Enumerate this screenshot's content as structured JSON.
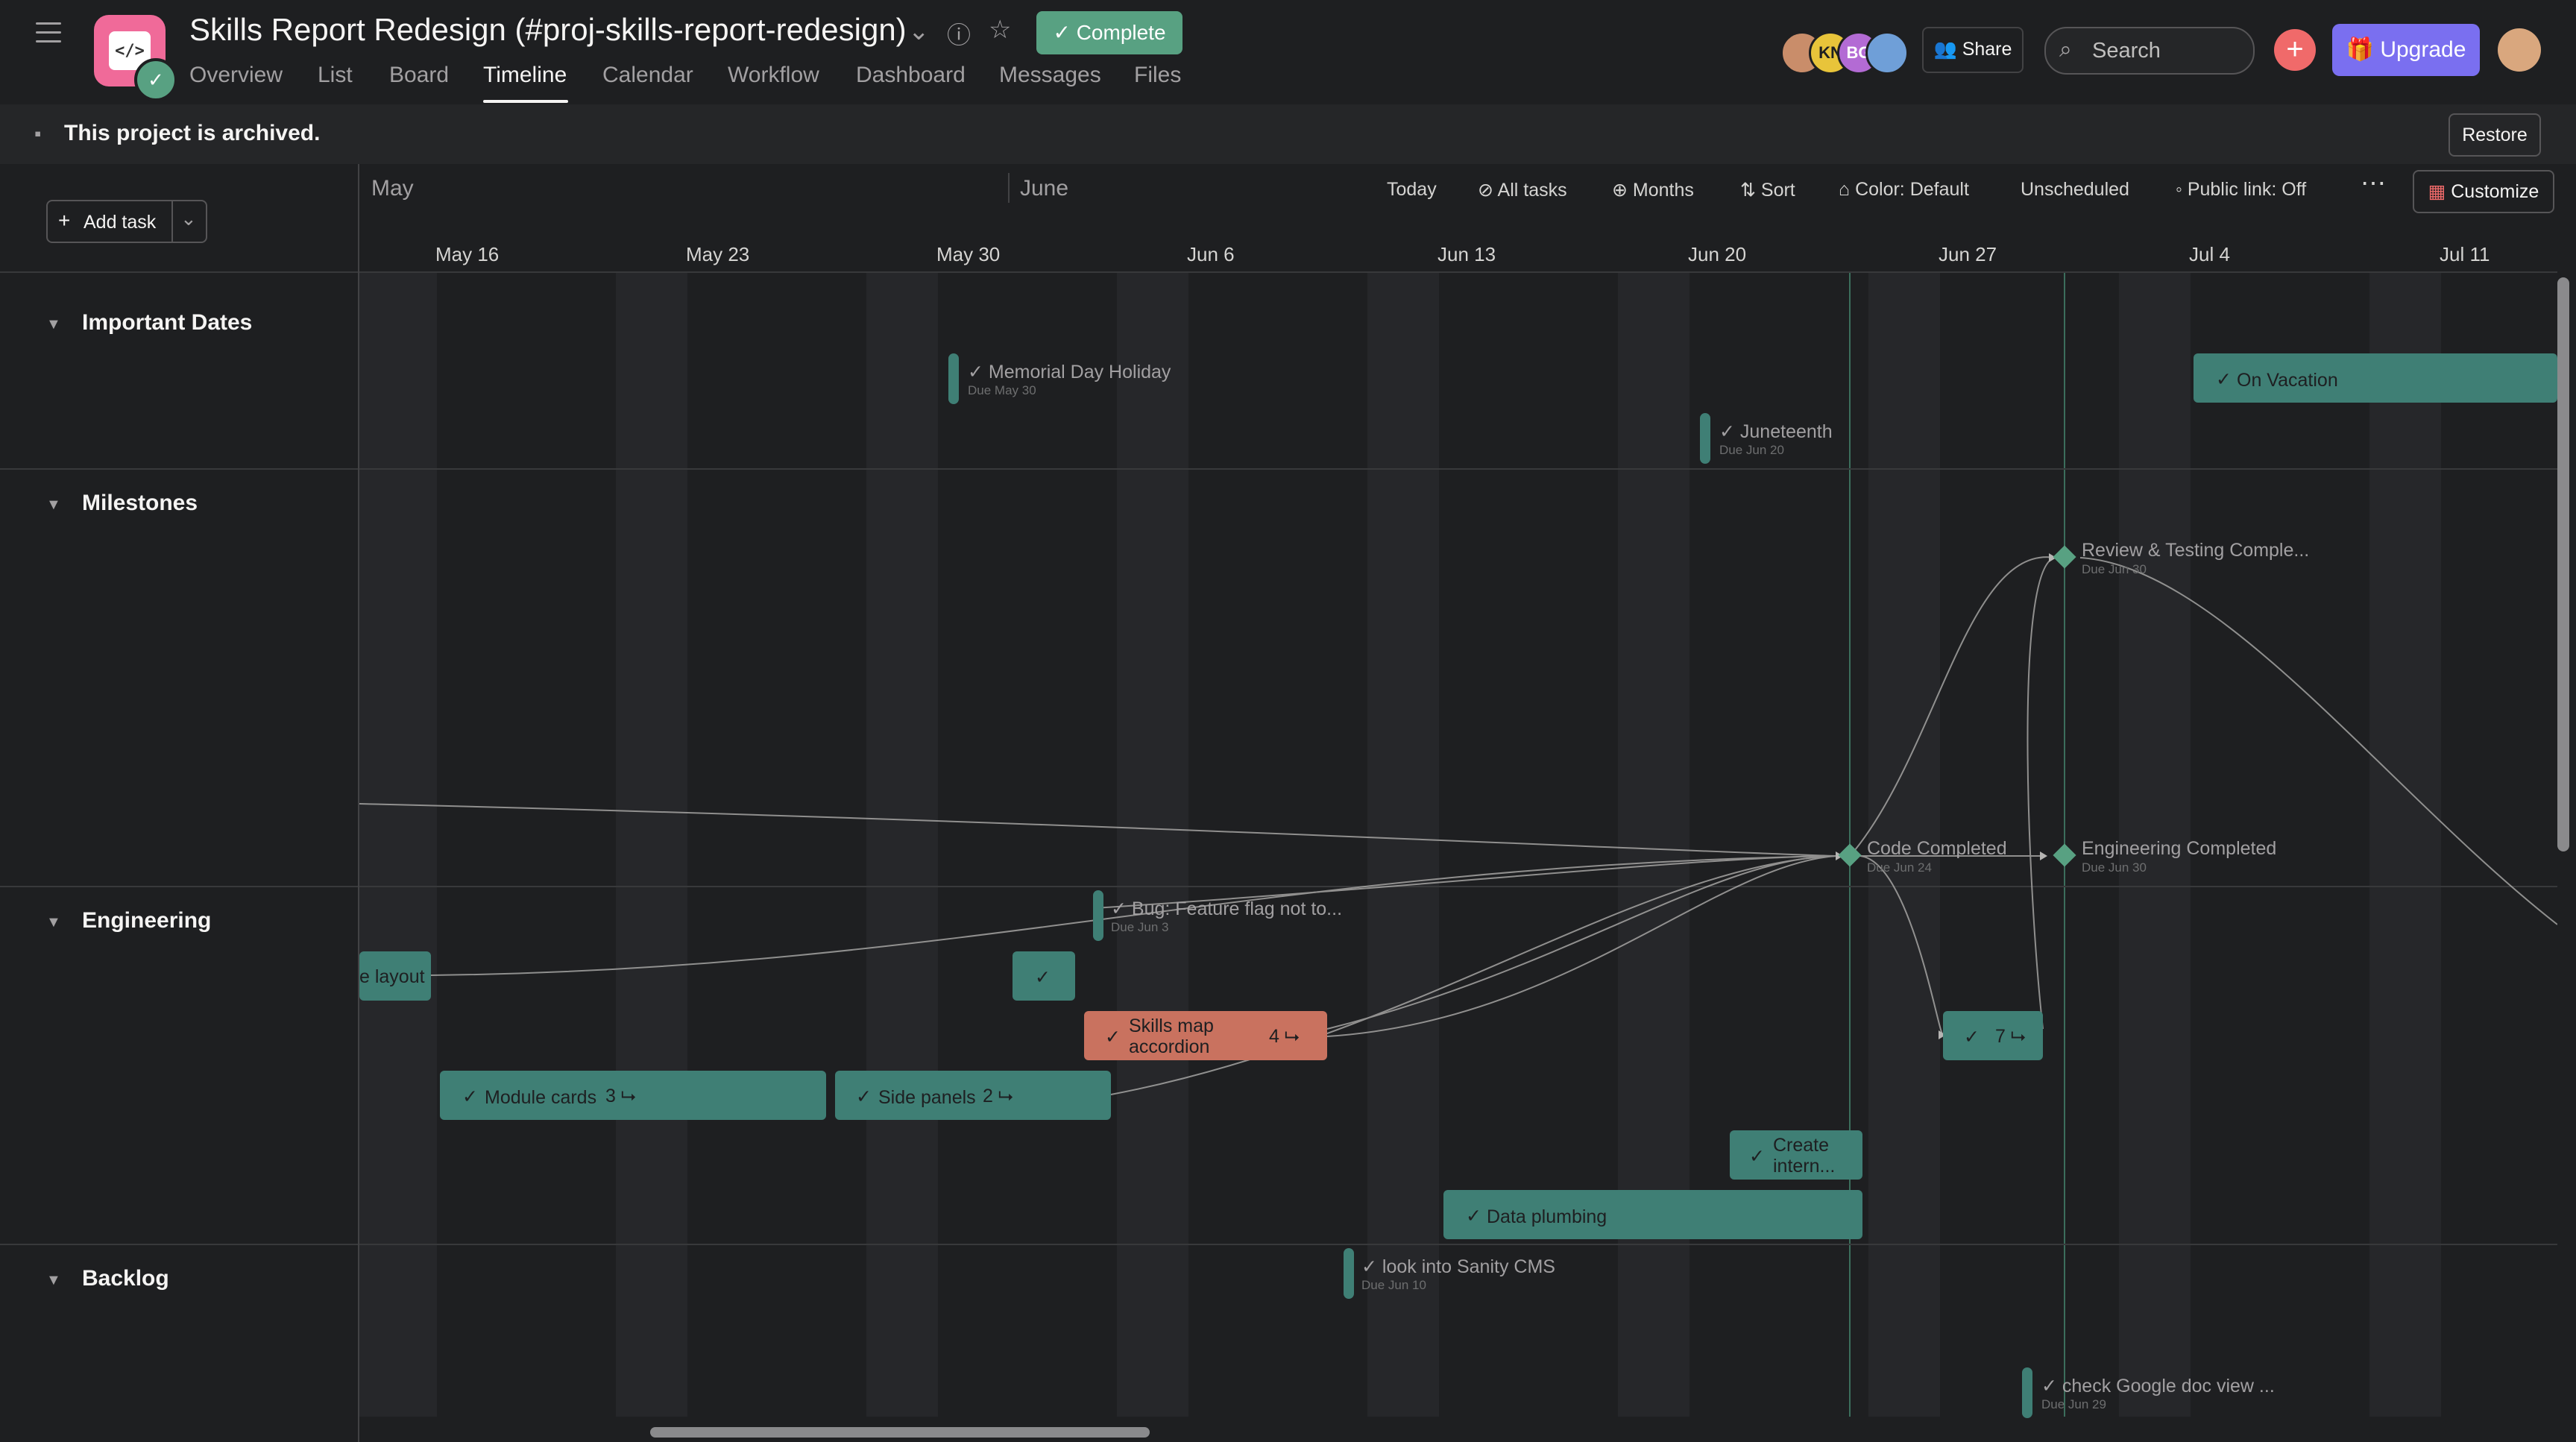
{
  "header": {
    "project_title": "Skills Report Redesign (#proj-skills-report-redesign)",
    "status": "Complete",
    "tabs": [
      "Overview",
      "List",
      "Board",
      "Timeline",
      "Calendar",
      "Workflow",
      "Dashboard",
      "Messages",
      "Files"
    ],
    "active_tab": "Timeline",
    "avatars": [
      "",
      "KN",
      "BG",
      ""
    ],
    "share_label": "Share",
    "search_placeholder": "Search",
    "upgrade_label": "Upgrade"
  },
  "banner": {
    "text": "This project is archived.",
    "restore_label": "Restore"
  },
  "toolbar": {
    "add_task_label": "Add task",
    "today": "Today",
    "all_tasks": "All tasks",
    "months": "Months",
    "sort": "Sort",
    "color": "Color: Default",
    "unscheduled": "Unscheduled",
    "public_link": "Public link: Off",
    "customize": "Customize"
  },
  "timeline": {
    "months": [
      "May",
      "June"
    ],
    "weeks": [
      "May 16",
      "May 23",
      "May 30",
      "Jun 6",
      "Jun 13",
      "Jun 20",
      "Jun 27",
      "Jul 4",
      "Jul 11"
    ]
  },
  "sections": [
    "Important Dates",
    "Milestones",
    "Engineering",
    "Backlog"
  ],
  "tasks": {
    "memorial_day": {
      "name": "Memorial Day Holiday",
      "due": "Due May 30"
    },
    "juneteenth": {
      "name": "Juneteenth",
      "due": "Due Jun 20"
    },
    "on_vacation": {
      "name": "On Vacation"
    },
    "review_testing": {
      "name": "Review & Testing Comple...",
      "due": "Due Jun 30"
    },
    "code_completed": {
      "name": "Code Completed",
      "due": "Due Jun 24"
    },
    "engineering_completed": {
      "name": "Engineering Completed",
      "due": "Due Jun 30"
    },
    "bug_feature_flag": {
      "name": "Bug: Feature flag not to...",
      "due": "Due Jun 3"
    },
    "layout": {
      "name": "e layout"
    },
    "skills_map": {
      "name": "Skills map accordion",
      "subtasks": "4"
    },
    "subtask_seven": {
      "subtasks": "7"
    },
    "module_cards": {
      "name": "Module cards",
      "subtasks": "3"
    },
    "side_panels": {
      "name": "Side panels",
      "subtasks": "2"
    },
    "create_intern": {
      "name": "Create intern..."
    },
    "data_plumbing": {
      "name": "Data plumbing"
    },
    "sanity_cms": {
      "name": "look into Sanity CMS",
      "due": "Due Jun 10"
    },
    "google_doc": {
      "name": "check Google doc view ...",
      "due": "Due Jun 29"
    }
  },
  "colors": {
    "task": "#3f7f75",
    "task_red": "#c9725f",
    "complete": "#58a182",
    "accent": "#7a6ff0",
    "add": "#f06a6a"
  }
}
